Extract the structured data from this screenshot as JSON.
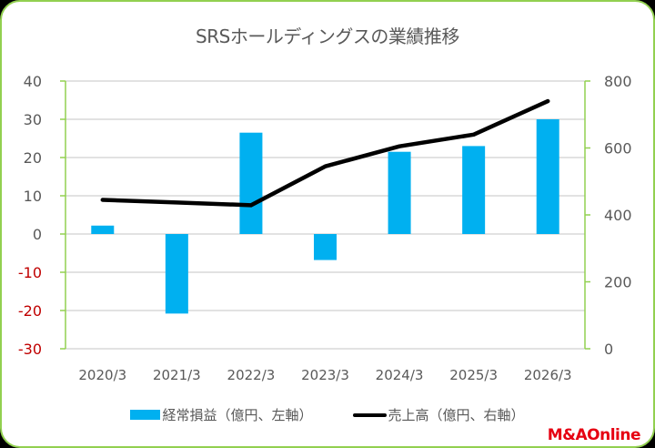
{
  "page": {
    "logo_text": "M&AOnline"
  },
  "chart_data": {
    "type": "bar+line",
    "title": "SRSホールディングスの業績推移",
    "categories": [
      "2020/3",
      "2021/3",
      "2022/3",
      "2023/3",
      "2024/3",
      "2025/3",
      "2026/3"
    ],
    "series": [
      {
        "name": "経常損益（億円、左軸）",
        "type": "bar",
        "axis": "left",
        "color": "#00b0f0",
        "values": [
          2.2,
          -20.8,
          26.5,
          -6.8,
          21.5,
          23.0,
          30.0
        ]
      },
      {
        "name": "売上高（億円、右軸）",
        "type": "line",
        "axis": "right",
        "color": "#000000",
        "values": [
          445,
          437,
          429,
          545,
          605,
          640,
          740
        ]
      }
    ],
    "left_axis": {
      "ylim": [
        -30,
        40
      ],
      "ticks": [
        40,
        30,
        20,
        10,
        0,
        -10,
        -20,
        -30
      ],
      "tick_labels": [
        "40",
        "30",
        "20",
        "10",
        "0",
        "-10",
        "-20",
        "-30"
      ],
      "negative_color": "#c00000"
    },
    "right_axis": {
      "ylim": [
        0,
        800
      ],
      "ticks": [
        800,
        600,
        400,
        200,
        0
      ],
      "tick_labels": [
        "800",
        "600",
        "400",
        "200",
        "0"
      ]
    },
    "grid": true,
    "legend_position": "bottom",
    "axis_color": "#92d050"
  }
}
